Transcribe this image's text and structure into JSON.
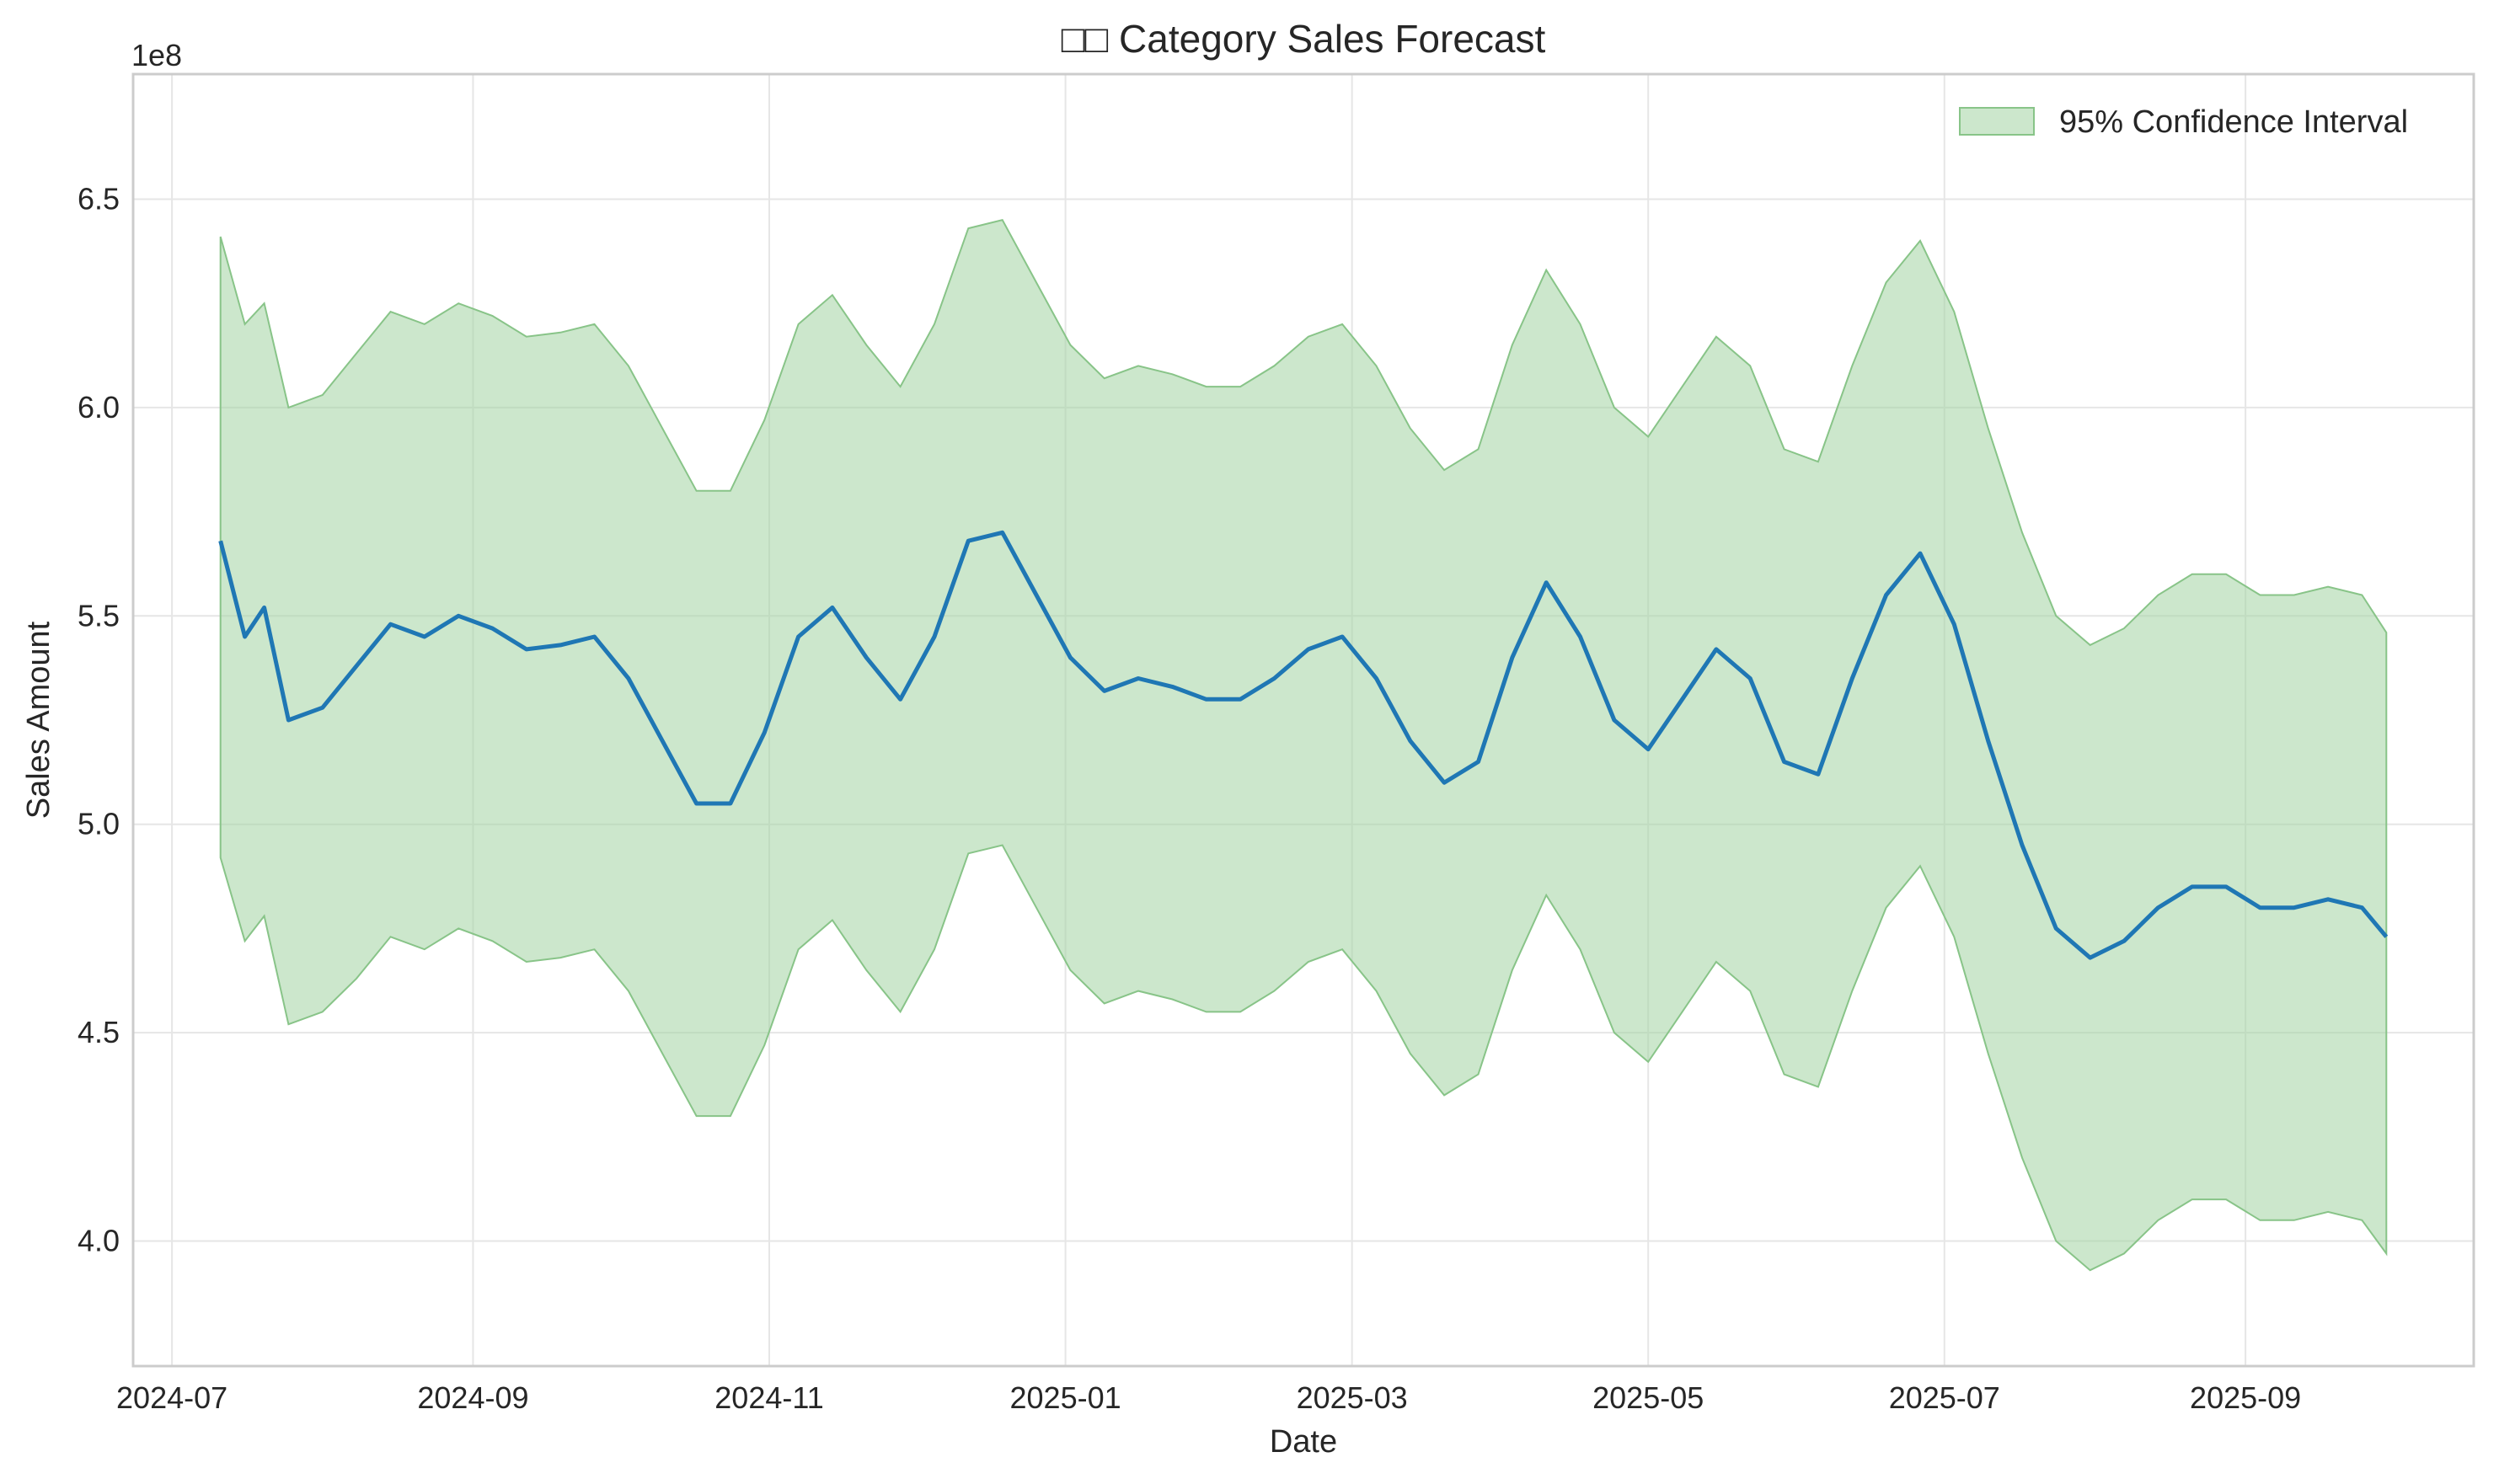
{
  "chart_data": {
    "type": "line",
    "title": "□□ Category Sales Forecast",
    "xlabel": "Date",
    "ylabel": "Sales Amount",
    "y_offset_label": "1e8",
    "x_start": "2024-07-11",
    "x_end": "2025-09-30",
    "xlim": [
      "2024-06-23",
      "2025-10-18"
    ],
    "ylim": [
      3.7,
      6.8
    ],
    "x_ticks": [
      "2024-07",
      "2024-09",
      "2024-11",
      "2025-01",
      "2025-03",
      "2025-05",
      "2025-07",
      "2025-09"
    ],
    "y_ticks": [
      "4.0",
      "4.5",
      "5.0",
      "5.5",
      "6.0",
      "6.5"
    ],
    "grid": true,
    "legend_position": "top-right",
    "series": [
      {
        "name": "",
        "color": "#1f77b4",
        "kind": "line",
        "points": [
          [
            "2024-07-11",
            5.68
          ],
          [
            "2024-07-16",
            5.45
          ],
          [
            "2024-07-20",
            5.52
          ],
          [
            "2024-07-25",
            5.25
          ],
          [
            "2024-08-01",
            5.28
          ],
          [
            "2024-08-08",
            5.38
          ],
          [
            "2024-08-15",
            5.48
          ],
          [
            "2024-08-22",
            5.45
          ],
          [
            "2024-08-29",
            5.5
          ],
          [
            "2024-09-05",
            5.47
          ],
          [
            "2024-09-12",
            5.42
          ],
          [
            "2024-09-19",
            5.43
          ],
          [
            "2024-09-26",
            5.45
          ],
          [
            "2024-10-03",
            5.35
          ],
          [
            "2024-10-10",
            5.2
          ],
          [
            "2024-10-17",
            5.05
          ],
          [
            "2024-10-24",
            5.05
          ],
          [
            "2024-10-31",
            5.22
          ],
          [
            "2024-11-07",
            5.45
          ],
          [
            "2024-11-14",
            5.52
          ],
          [
            "2024-11-21",
            5.4
          ],
          [
            "2024-11-28",
            5.3
          ],
          [
            "2024-12-05",
            5.45
          ],
          [
            "2024-12-12",
            5.68
          ],
          [
            "2024-12-19",
            5.7
          ],
          [
            "2024-12-26",
            5.55
          ],
          [
            "2025-01-02",
            5.4
          ],
          [
            "2025-01-09",
            5.32
          ],
          [
            "2025-01-16",
            5.35
          ],
          [
            "2025-01-23",
            5.33
          ],
          [
            "2025-01-30",
            5.3
          ],
          [
            "2025-02-06",
            5.3
          ],
          [
            "2025-02-13",
            5.35
          ],
          [
            "2025-02-20",
            5.42
          ],
          [
            "2025-02-27",
            5.45
          ],
          [
            "2025-03-06",
            5.35
          ],
          [
            "2025-03-13",
            5.2
          ],
          [
            "2025-03-20",
            5.1
          ],
          [
            "2025-03-27",
            5.15
          ],
          [
            "2025-04-03",
            5.4
          ],
          [
            "2025-04-10",
            5.58
          ],
          [
            "2025-04-17",
            5.45
          ],
          [
            "2025-04-24",
            5.25
          ],
          [
            "2025-05-01",
            5.18
          ],
          [
            "2025-05-08",
            5.3
          ],
          [
            "2025-05-15",
            5.42
          ],
          [
            "2025-05-22",
            5.35
          ],
          [
            "2025-05-29",
            5.15
          ],
          [
            "2025-06-05",
            5.12
          ],
          [
            "2025-06-12",
            5.35
          ],
          [
            "2025-06-19",
            5.55
          ],
          [
            "2025-06-26",
            5.65
          ],
          [
            "2025-07-03",
            5.48
          ],
          [
            "2025-07-10",
            5.2
          ],
          [
            "2025-07-17",
            4.95
          ],
          [
            "2025-07-24",
            4.75
          ],
          [
            "2025-07-31",
            4.68
          ],
          [
            "2025-08-07",
            4.72
          ],
          [
            "2025-08-14",
            4.8
          ],
          [
            "2025-08-21",
            4.85
          ],
          [
            "2025-08-28",
            4.85
          ],
          [
            "2025-09-04",
            4.8
          ],
          [
            "2025-09-11",
            4.8
          ],
          [
            "2025-09-18",
            4.82
          ],
          [
            "2025-09-25",
            4.8
          ],
          [
            "2025-09-30",
            4.73
          ]
        ]
      },
      {
        "name": "95% Confidence Interval",
        "color": "#a3d3a3",
        "kind": "band",
        "upper_points": [
          [
            "2024-07-11",
            6.41
          ],
          [
            "2024-07-16",
            6.2
          ],
          [
            "2024-07-20",
            6.25
          ],
          [
            "2024-07-25",
            6.0
          ],
          [
            "2024-08-01",
            6.03
          ],
          [
            "2024-08-08",
            6.13
          ],
          [
            "2024-08-15",
            6.23
          ],
          [
            "2024-08-22",
            6.2
          ],
          [
            "2024-08-29",
            6.25
          ],
          [
            "2024-09-05",
            6.22
          ],
          [
            "2024-09-12",
            6.17
          ],
          [
            "2024-09-19",
            6.18
          ],
          [
            "2024-09-26",
            6.2
          ],
          [
            "2024-10-03",
            6.1
          ],
          [
            "2024-10-10",
            5.95
          ],
          [
            "2024-10-17",
            5.8
          ],
          [
            "2024-10-24",
            5.8
          ],
          [
            "2024-10-31",
            5.97
          ],
          [
            "2024-11-07",
            6.2
          ],
          [
            "2024-11-14",
            6.27
          ],
          [
            "2024-11-21",
            6.15
          ],
          [
            "2024-11-28",
            6.05
          ],
          [
            "2024-12-05",
            6.2
          ],
          [
            "2024-12-12",
            6.43
          ],
          [
            "2024-12-19",
            6.45
          ],
          [
            "2024-12-26",
            6.3
          ],
          [
            "2025-01-02",
            6.15
          ],
          [
            "2025-01-09",
            6.07
          ],
          [
            "2025-01-16",
            6.1
          ],
          [
            "2025-01-23",
            6.08
          ],
          [
            "2025-01-30",
            6.05
          ],
          [
            "2025-02-06",
            6.05
          ],
          [
            "2025-02-13",
            6.1
          ],
          [
            "2025-02-20",
            6.17
          ],
          [
            "2025-02-27",
            6.2
          ],
          [
            "2025-03-06",
            6.1
          ],
          [
            "2025-03-13",
            5.95
          ],
          [
            "2025-03-20",
            5.85
          ],
          [
            "2025-03-27",
            5.9
          ],
          [
            "2025-04-03",
            6.15
          ],
          [
            "2025-04-10",
            6.33
          ],
          [
            "2025-04-17",
            6.2
          ],
          [
            "2025-04-24",
            6.0
          ],
          [
            "2025-05-01",
            5.93
          ],
          [
            "2025-05-08",
            6.05
          ],
          [
            "2025-05-15",
            6.17
          ],
          [
            "2025-05-22",
            6.1
          ],
          [
            "2025-05-29",
            5.9
          ],
          [
            "2025-06-05",
            5.87
          ],
          [
            "2025-06-12",
            6.1
          ],
          [
            "2025-06-19",
            6.3
          ],
          [
            "2025-06-26",
            6.4
          ],
          [
            "2025-07-03",
            6.23
          ],
          [
            "2025-07-10",
            5.95
          ],
          [
            "2025-07-17",
            5.7
          ],
          [
            "2025-07-24",
            5.5
          ],
          [
            "2025-07-31",
            5.43
          ],
          [
            "2025-08-07",
            5.47
          ],
          [
            "2025-08-14",
            5.55
          ],
          [
            "2025-08-21",
            5.6
          ],
          [
            "2025-08-28",
            5.6
          ],
          [
            "2025-09-04",
            5.55
          ],
          [
            "2025-09-11",
            5.55
          ],
          [
            "2025-09-18",
            5.57
          ],
          [
            "2025-09-25",
            5.55
          ],
          [
            "2025-09-30",
            5.46
          ]
        ],
        "lower_points": [
          [
            "2024-07-11",
            4.92
          ],
          [
            "2024-07-16",
            4.72
          ],
          [
            "2024-07-20",
            4.78
          ],
          [
            "2024-07-25",
            4.52
          ],
          [
            "2024-08-01",
            4.55
          ],
          [
            "2024-08-08",
            4.63
          ],
          [
            "2024-08-15",
            4.73
          ],
          [
            "2024-08-22",
            4.7
          ],
          [
            "2024-08-29",
            4.75
          ],
          [
            "2024-09-05",
            4.72
          ],
          [
            "2024-09-12",
            4.67
          ],
          [
            "2024-09-19",
            4.68
          ],
          [
            "2024-09-26",
            4.7
          ],
          [
            "2024-10-03",
            4.6
          ],
          [
            "2024-10-10",
            4.45
          ],
          [
            "2024-10-17",
            4.3
          ],
          [
            "2024-10-24",
            4.3
          ],
          [
            "2024-10-31",
            4.47
          ],
          [
            "2024-11-07",
            4.7
          ],
          [
            "2024-11-14",
            4.77
          ],
          [
            "2024-11-21",
            4.65
          ],
          [
            "2024-11-28",
            4.55
          ],
          [
            "2024-12-05",
            4.7
          ],
          [
            "2024-12-12",
            4.93
          ],
          [
            "2024-12-19",
            4.95
          ],
          [
            "2024-12-26",
            4.8
          ],
          [
            "2025-01-02",
            4.65
          ],
          [
            "2025-01-09",
            4.57
          ],
          [
            "2025-01-16",
            4.6
          ],
          [
            "2025-01-23",
            4.58
          ],
          [
            "2025-01-30",
            4.55
          ],
          [
            "2025-02-06",
            4.55
          ],
          [
            "2025-02-13",
            4.6
          ],
          [
            "2025-02-20",
            4.67
          ],
          [
            "2025-02-27",
            4.7
          ],
          [
            "2025-03-06",
            4.6
          ],
          [
            "2025-03-13",
            4.45
          ],
          [
            "2025-03-20",
            4.35
          ],
          [
            "2025-03-27",
            4.4
          ],
          [
            "2025-04-03",
            4.65
          ],
          [
            "2025-04-10",
            4.83
          ],
          [
            "2025-04-17",
            4.7
          ],
          [
            "2025-04-24",
            4.5
          ],
          [
            "2025-05-01",
            4.43
          ],
          [
            "2025-05-08",
            4.55
          ],
          [
            "2025-05-15",
            4.67
          ],
          [
            "2025-05-22",
            4.6
          ],
          [
            "2025-05-29",
            4.4
          ],
          [
            "2025-06-05",
            4.37
          ],
          [
            "2025-06-12",
            4.6
          ],
          [
            "2025-06-19",
            4.8
          ],
          [
            "2025-06-26",
            4.9
          ],
          [
            "2025-07-03",
            4.73
          ],
          [
            "2025-07-10",
            4.45
          ],
          [
            "2025-07-17",
            4.2
          ],
          [
            "2025-07-24",
            4.0
          ],
          [
            "2025-07-31",
            3.93
          ],
          [
            "2025-08-07",
            3.97
          ],
          [
            "2025-08-14",
            4.05
          ],
          [
            "2025-08-21",
            4.1
          ],
          [
            "2025-08-28",
            4.1
          ],
          [
            "2025-09-04",
            4.05
          ],
          [
            "2025-09-11",
            4.05
          ],
          [
            "2025-09-18",
            4.07
          ],
          [
            "2025-09-25",
            4.05
          ],
          [
            "2025-09-30",
            3.97
          ]
        ]
      }
    ]
  }
}
